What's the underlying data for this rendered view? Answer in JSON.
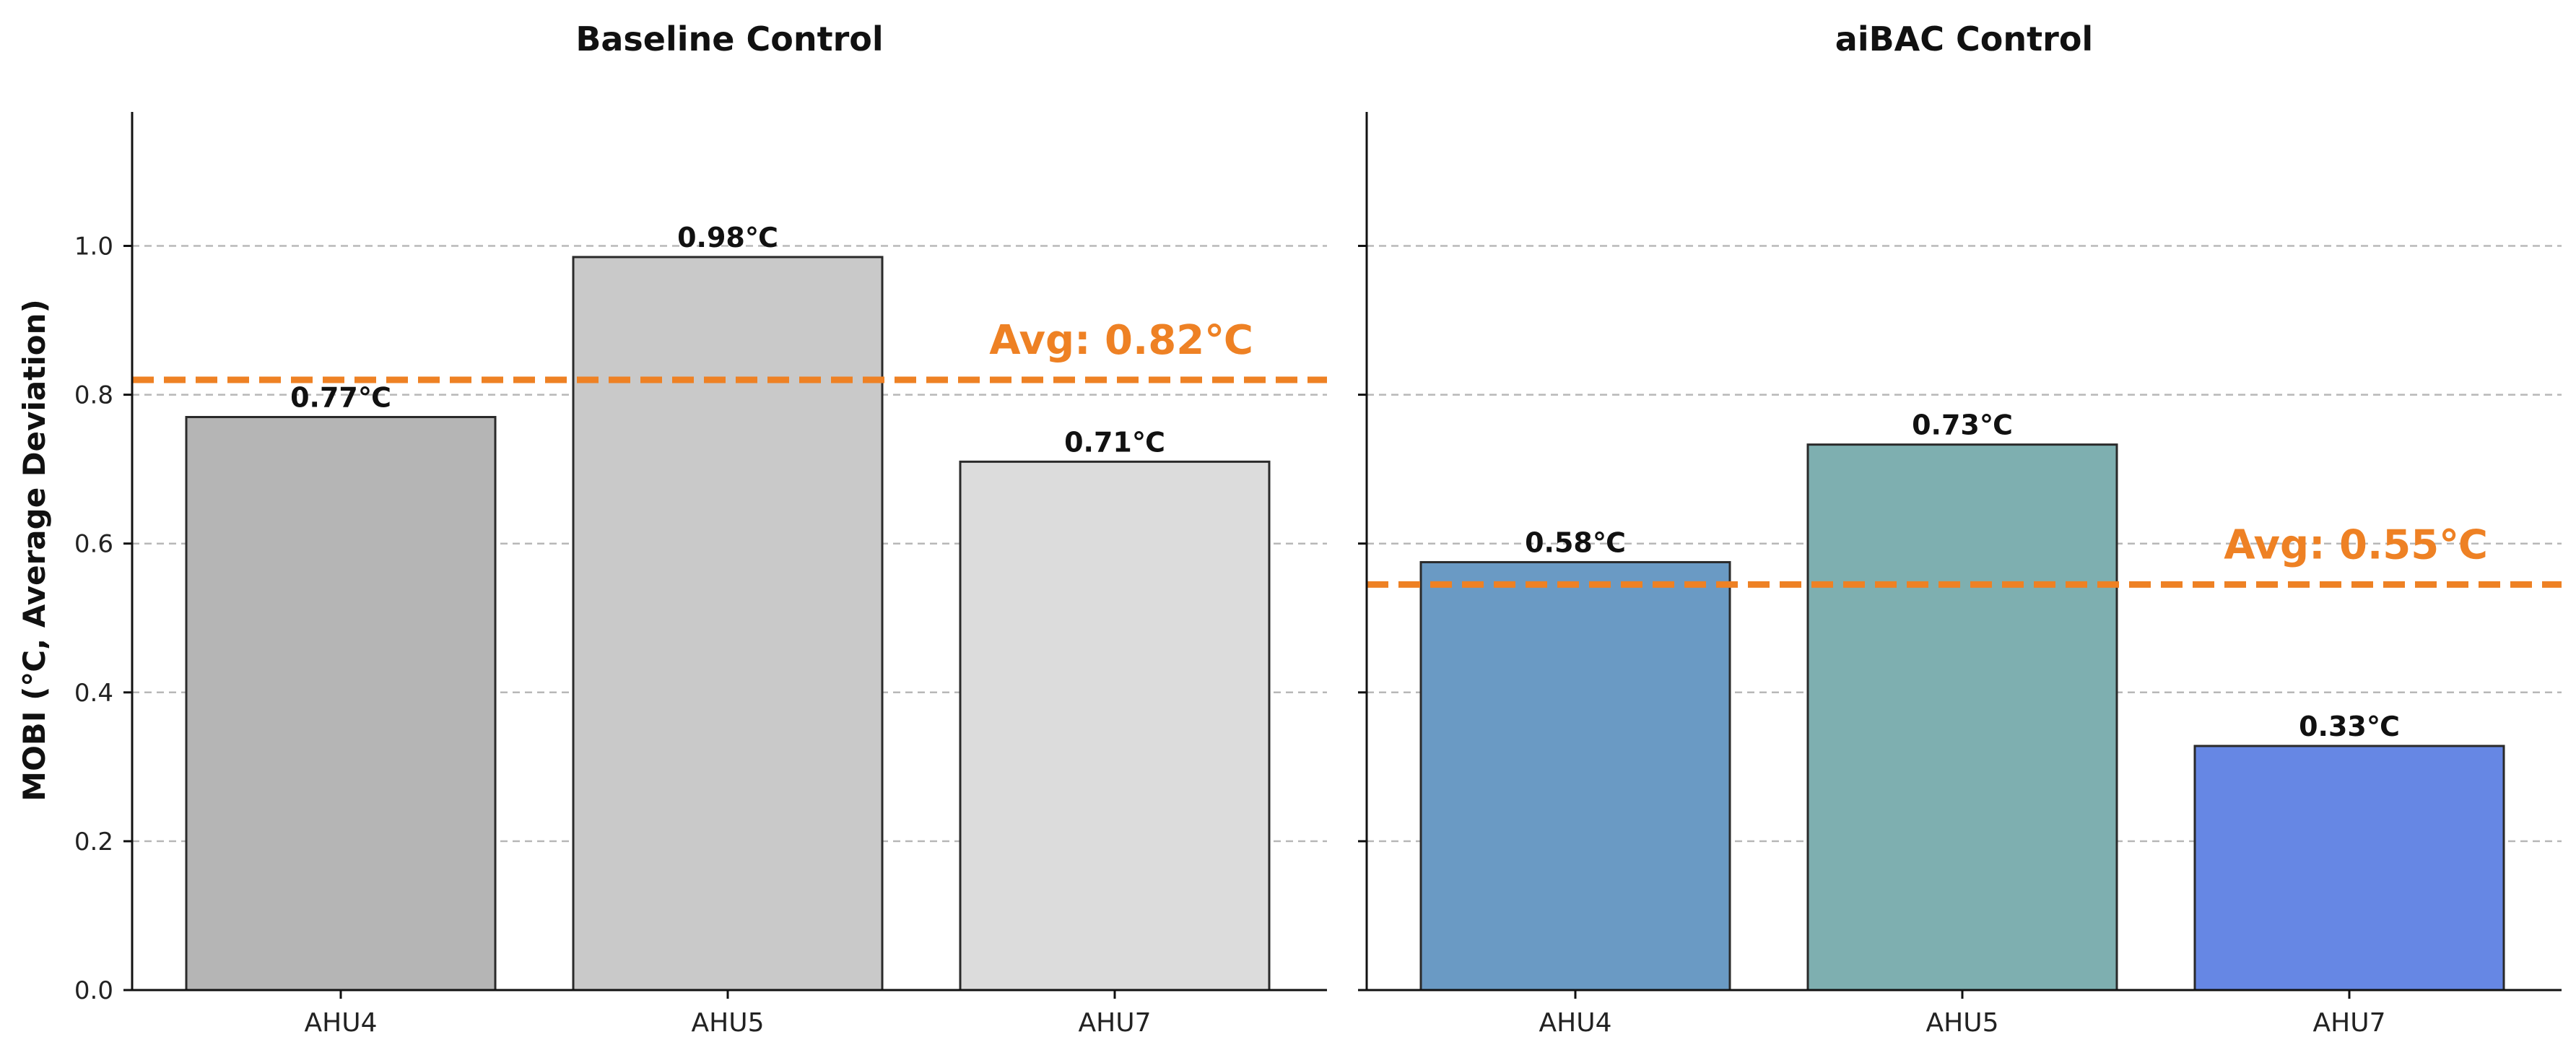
{
  "chart_data": {
    "type": "bar",
    "ylabel": "MOBI (℃, Average Deviation)",
    "ylim": [
      0,
      1.18
    ],
    "yticks": [
      "0.0",
      "0.2",
      "0.4",
      "0.6",
      "0.8",
      "1.0"
    ],
    "grid": "y-dashed",
    "panels": [
      {
        "title": "Baseline Control",
        "categories": [
          "AHU4",
          "AHU5",
          "AHU7"
        ],
        "values": [
          0.77,
          0.985,
          0.71
        ],
        "value_labels": [
          "0.77℃",
          "0.98℃",
          "0.71℃"
        ],
        "bar_colors": [
          "#b5b5b5",
          "#c9c9c9",
          "#dcdcdc"
        ],
        "average": 0.82,
        "average_label": "Avg: 0.82℃",
        "average_color": "#ee8124"
      },
      {
        "title": "aiBAC Control",
        "categories": [
          "AHU4",
          "AHU5",
          "AHU7"
        ],
        "values": [
          0.575,
          0.733,
          0.328
        ],
        "value_labels": [
          "0.58℃",
          "0.73℃",
          "0.33℃"
        ],
        "bar_colors": [
          "#6a9ac4",
          "#7eafb0",
          "#6687e4"
        ],
        "average": 0.545,
        "average_label": "Avg: 0.55℃",
        "average_color": "#ee8124"
      }
    ]
  }
}
